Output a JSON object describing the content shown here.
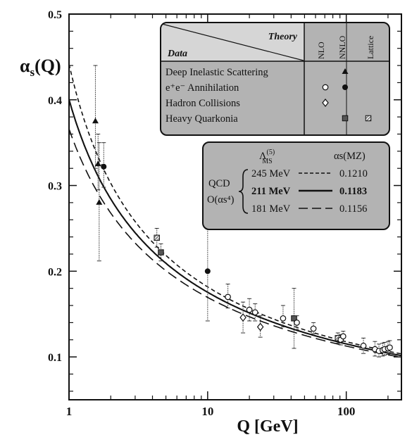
{
  "chart_data": {
    "type": "line",
    "title": "",
    "ylabel_main": "α",
    "ylabel_sub": "s",
    "ylabel_arg": "(Q)",
    "xlabel": "Q [GeV]",
    "xscale": "log",
    "xlim": [
      1,
      250
    ],
    "ylim": [
      0.05,
      0.5
    ],
    "y_ticks": [
      0.1,
      0.2,
      0.3,
      0.4,
      0.5
    ],
    "x_ticks": [
      1,
      10,
      100
    ],
    "y_tick_labels": [
      "0.1",
      "0.2",
      "0.3",
      "0.4",
      "0.5"
    ],
    "x_tick_labels": [
      "1",
      "10",
      "100"
    ],
    "theory_legend": {
      "header_theory": "Theory",
      "header_data": "Data",
      "columns": [
        "NLO",
        "NNLO",
        "Lattice"
      ],
      "rows": [
        {
          "label": "Deep Inelastic Scattering",
          "markers": [
            "",
            "triangle",
            ""
          ]
        },
        {
          "label": "e⁺e⁻ Annihilation",
          "markers": [
            "open-circle",
            "filled-circle",
            ""
          ]
        },
        {
          "label": "Hadron Collisions",
          "markers": [
            "open-diamond",
            "",
            ""
          ]
        },
        {
          "label": "Heavy Quarkonia",
          "markers": [
            "",
            "filled-square",
            "hatched-square"
          ]
        }
      ]
    },
    "curve_legend": {
      "lambda_header": "Λ",
      "lambda_sup": "(5)",
      "lambda_sub": "MS",
      "alpha_header": "αs(MZ)",
      "qcd_label": "QCD",
      "order_label": "O(αs⁴)",
      "entries": [
        {
          "lambda": "245 MeV",
          "alpha": "0.1210",
          "style": "dashed"
        },
        {
          "lambda": "211 MeV",
          "alpha": "0.1183",
          "style": "solid"
        },
        {
          "lambda": "181 MeV",
          "alpha": "0.1156",
          "style": "long-dashed"
        }
      ]
    },
    "series": [
      {
        "name": "245 MeV",
        "lambda_gev": 0.245,
        "style": "dashed"
      },
      {
        "name": "211 MeV",
        "lambda_gev": 0.211,
        "style": "solid"
      },
      {
        "name": "181 MeV",
        "lambda_gev": 0.181,
        "style": "long-dashed"
      }
    ],
    "points": [
      {
        "q": 1.55,
        "y": 0.375,
        "lo": 0.32,
        "hi": 0.44,
        "m": "triangle"
      },
      {
        "q": 1.62,
        "y": 0.325,
        "lo": 0.295,
        "hi": 0.36,
        "m": "triangle"
      },
      {
        "q": 1.65,
        "y": 0.28,
        "lo": 0.212,
        "hi": 0.35,
        "m": "triangle"
      },
      {
        "q": 1.78,
        "y": 0.322,
        "lo": 0.298,
        "hi": 0.35,
        "m": "filled-circle"
      },
      {
        "q": 4.3,
        "y": 0.239,
        "lo": 0.228,
        "hi": 0.25,
        "m": "hatched-square"
      },
      {
        "q": 4.6,
        "y": 0.222,
        "lo": 0.212,
        "hi": 0.232,
        "m": "filled-square"
      },
      {
        "q": 10.0,
        "y": 0.2,
        "lo": 0.142,
        "hi": 0.26,
        "m": "filled-circle"
      },
      {
        "q": 14.0,
        "y": 0.17,
        "lo": 0.157,
        "hi": 0.185,
        "m": "open-circle"
      },
      {
        "q": 20.0,
        "y": 0.155,
        "lo": 0.142,
        "hi": 0.168,
        "m": "open-circle"
      },
      {
        "q": 22.0,
        "y": 0.152,
        "lo": 0.142,
        "hi": 0.162,
        "m": "open-circle"
      },
      {
        "q": 18.0,
        "y": 0.146,
        "lo": 0.128,
        "hi": 0.164,
        "m": "open-diamond"
      },
      {
        "q": 24.0,
        "y": 0.135,
        "lo": 0.123,
        "hi": 0.148,
        "m": "open-diamond"
      },
      {
        "q": 35.0,
        "y": 0.145,
        "lo": 0.135,
        "hi": 0.16,
        "m": "open-circle"
      },
      {
        "q": 42.0,
        "y": 0.145,
        "lo": 0.11,
        "hi": 0.18,
        "m": "filled-square"
      },
      {
        "q": 44.0,
        "y": 0.14,
        "lo": 0.132,
        "hi": 0.148,
        "m": "open-circle"
      },
      {
        "q": 58.0,
        "y": 0.133,
        "lo": 0.127,
        "hi": 0.14,
        "m": "open-circle"
      },
      {
        "q": 87.0,
        "y": 0.122,
        "lo": 0.116,
        "hi": 0.128,
        "m": "hatched-square"
      },
      {
        "q": 91.2,
        "y": 0.12,
        "lo": 0.114,
        "hi": 0.126,
        "m": "open-circle"
      },
      {
        "q": 95.0,
        "y": 0.124,
        "lo": 0.118,
        "hi": 0.13,
        "m": "open-circle"
      },
      {
        "q": 133.0,
        "y": 0.113,
        "lo": 0.104,
        "hi": 0.122,
        "m": "open-circle"
      },
      {
        "q": 161.0,
        "y": 0.109,
        "lo": 0.101,
        "hi": 0.118,
        "m": "open-circle"
      },
      {
        "q": 172.0,
        "y": 0.107,
        "lo": 0.1,
        "hi": 0.115,
        "m": "open-circle"
      },
      {
        "q": 183.0,
        "y": 0.108,
        "lo": 0.101,
        "hi": 0.116,
        "m": "open-circle"
      },
      {
        "q": 189.0,
        "y": 0.109,
        "lo": 0.102,
        "hi": 0.117,
        "m": "open-circle"
      },
      {
        "q": 200.0,
        "y": 0.11,
        "lo": 0.103,
        "hi": 0.118,
        "m": "open-circle"
      },
      {
        "q": 206.0,
        "y": 0.111,
        "lo": 0.104,
        "hi": 0.119,
        "m": "open-circle"
      }
    ]
  }
}
